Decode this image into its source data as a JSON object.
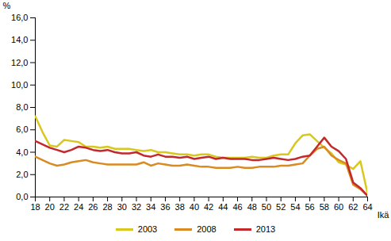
{
  "chart_data": {
    "type": "line",
    "y_label": "%",
    "x_label": "Ikä",
    "x": [
      18,
      19,
      20,
      21,
      22,
      23,
      24,
      25,
      26,
      27,
      28,
      29,
      30,
      31,
      32,
      33,
      34,
      35,
      36,
      37,
      38,
      39,
      40,
      41,
      42,
      43,
      44,
      45,
      46,
      47,
      48,
      49,
      50,
      51,
      52,
      53,
      54,
      55,
      56,
      57,
      58,
      59,
      60,
      61,
      62,
      63,
      64
    ],
    "series": [
      {
        "name": "2003",
        "color": "#d8c81e",
        "values": [
          7.2,
          5.8,
          4.6,
          4.5,
          5.1,
          5.0,
          4.9,
          4.5,
          4.5,
          4.4,
          4.5,
          4.3,
          4.3,
          4.3,
          4.2,
          4.1,
          4.2,
          4.0,
          4.0,
          3.9,
          3.8,
          3.8,
          3.7,
          3.8,
          3.8,
          3.6,
          3.5,
          3.5,
          3.5,
          3.5,
          3.6,
          3.5,
          3.5,
          3.7,
          3.8,
          3.8,
          4.8,
          5.5,
          5.6,
          5.0,
          4.4,
          3.9,
          3.1,
          2.9,
          2.5,
          3.2,
          0.3
        ]
      },
      {
        "name": "2008",
        "color": "#d98b22",
        "values": [
          3.6,
          3.3,
          3.0,
          2.8,
          2.9,
          3.1,
          3.2,
          3.3,
          3.1,
          3.0,
          2.9,
          2.9,
          2.9,
          2.9,
          2.9,
          3.1,
          2.8,
          3.0,
          2.9,
          2.8,
          2.8,
          2.9,
          2.8,
          2.7,
          2.7,
          2.6,
          2.6,
          2.6,
          2.7,
          2.6,
          2.6,
          2.7,
          2.7,
          2.7,
          2.8,
          2.8,
          2.9,
          3.0,
          3.7,
          4.3,
          4.5,
          3.7,
          3.3,
          3.0,
          1.1,
          0.7,
          0.1
        ]
      },
      {
        "name": "2013",
        "color": "#c3282b",
        "values": [
          5.0,
          4.7,
          4.4,
          4.2,
          4.0,
          4.2,
          4.5,
          4.4,
          4.2,
          4.1,
          4.2,
          4.0,
          3.9,
          3.9,
          4.0,
          3.7,
          3.6,
          3.8,
          3.6,
          3.6,
          3.5,
          3.6,
          3.4,
          3.5,
          3.6,
          3.4,
          3.5,
          3.4,
          3.4,
          3.4,
          3.3,
          3.3,
          3.4,
          3.5,
          3.4,
          3.3,
          3.4,
          3.6,
          3.7,
          4.5,
          5.3,
          4.5,
          4.1,
          3.4,
          1.3,
          0.8,
          0.1
        ]
      }
    ],
    "xlim": [
      18,
      64
    ],
    "xticks": [
      18,
      20,
      22,
      24,
      26,
      28,
      30,
      32,
      34,
      36,
      38,
      40,
      42,
      44,
      46,
      48,
      50,
      52,
      54,
      56,
      58,
      60,
      62,
      64
    ],
    "ylim": [
      0,
      16
    ],
    "yticks": [
      {
        "value": 0,
        "label": "0,0"
      },
      {
        "value": 2,
        "label": "2,0"
      },
      {
        "value": 4,
        "label": "4,0"
      },
      {
        "value": 6,
        "label": "6,0"
      },
      {
        "value": 8,
        "label": "8,0"
      },
      {
        "value": 10,
        "label": "10,0"
      },
      {
        "value": 12,
        "label": "12,0"
      },
      {
        "value": 14,
        "label": "14,0"
      },
      {
        "value": 16,
        "label": "16,0"
      }
    ],
    "grid": false,
    "legend": "bottom"
  }
}
